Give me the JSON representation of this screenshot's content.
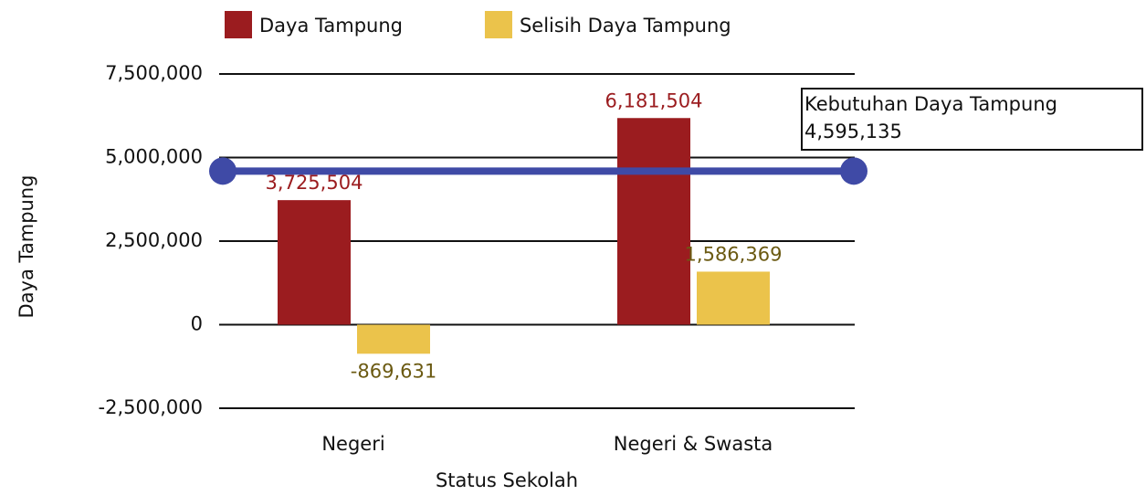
{
  "chart_data": {
    "type": "bar",
    "x_label": "Status Sekolah",
    "y_label": "Daya Tampung",
    "categories": [
      "Negeri",
      "Negeri & Swasta"
    ],
    "series": [
      {
        "name": "Daya Tampung",
        "color": "#9b1c1f",
        "values": [
          3725504,
          6181504
        ],
        "value_labels": [
          "3,725,504",
          "6,181,504"
        ]
      },
      {
        "name": "Selisih Daya Tampung",
        "color": "#ebc34b",
        "values": [
          -869631,
          1586369
        ],
        "value_labels": [
          "-869,631",
          "1,586,369"
        ]
      }
    ],
    "reference_line": {
      "label": "Kebutuhan Daya Tampung",
      "value": 4595135,
      "value_label": "4,595,135",
      "color": "#3f4aa6"
    },
    "ylim": [
      -2500000,
      7500000
    ],
    "yticks": [
      {
        "value": -2500000,
        "label": "-2,500,000"
      },
      0,
      {
        "value": 2500000,
        "label": "2,500,000"
      },
      {
        "value": 5000000,
        "label": "5,000,000"
      },
      {
        "value": 7500000,
        "label": "7,500,000"
      }
    ],
    "grid": true,
    "legend": "top"
  }
}
